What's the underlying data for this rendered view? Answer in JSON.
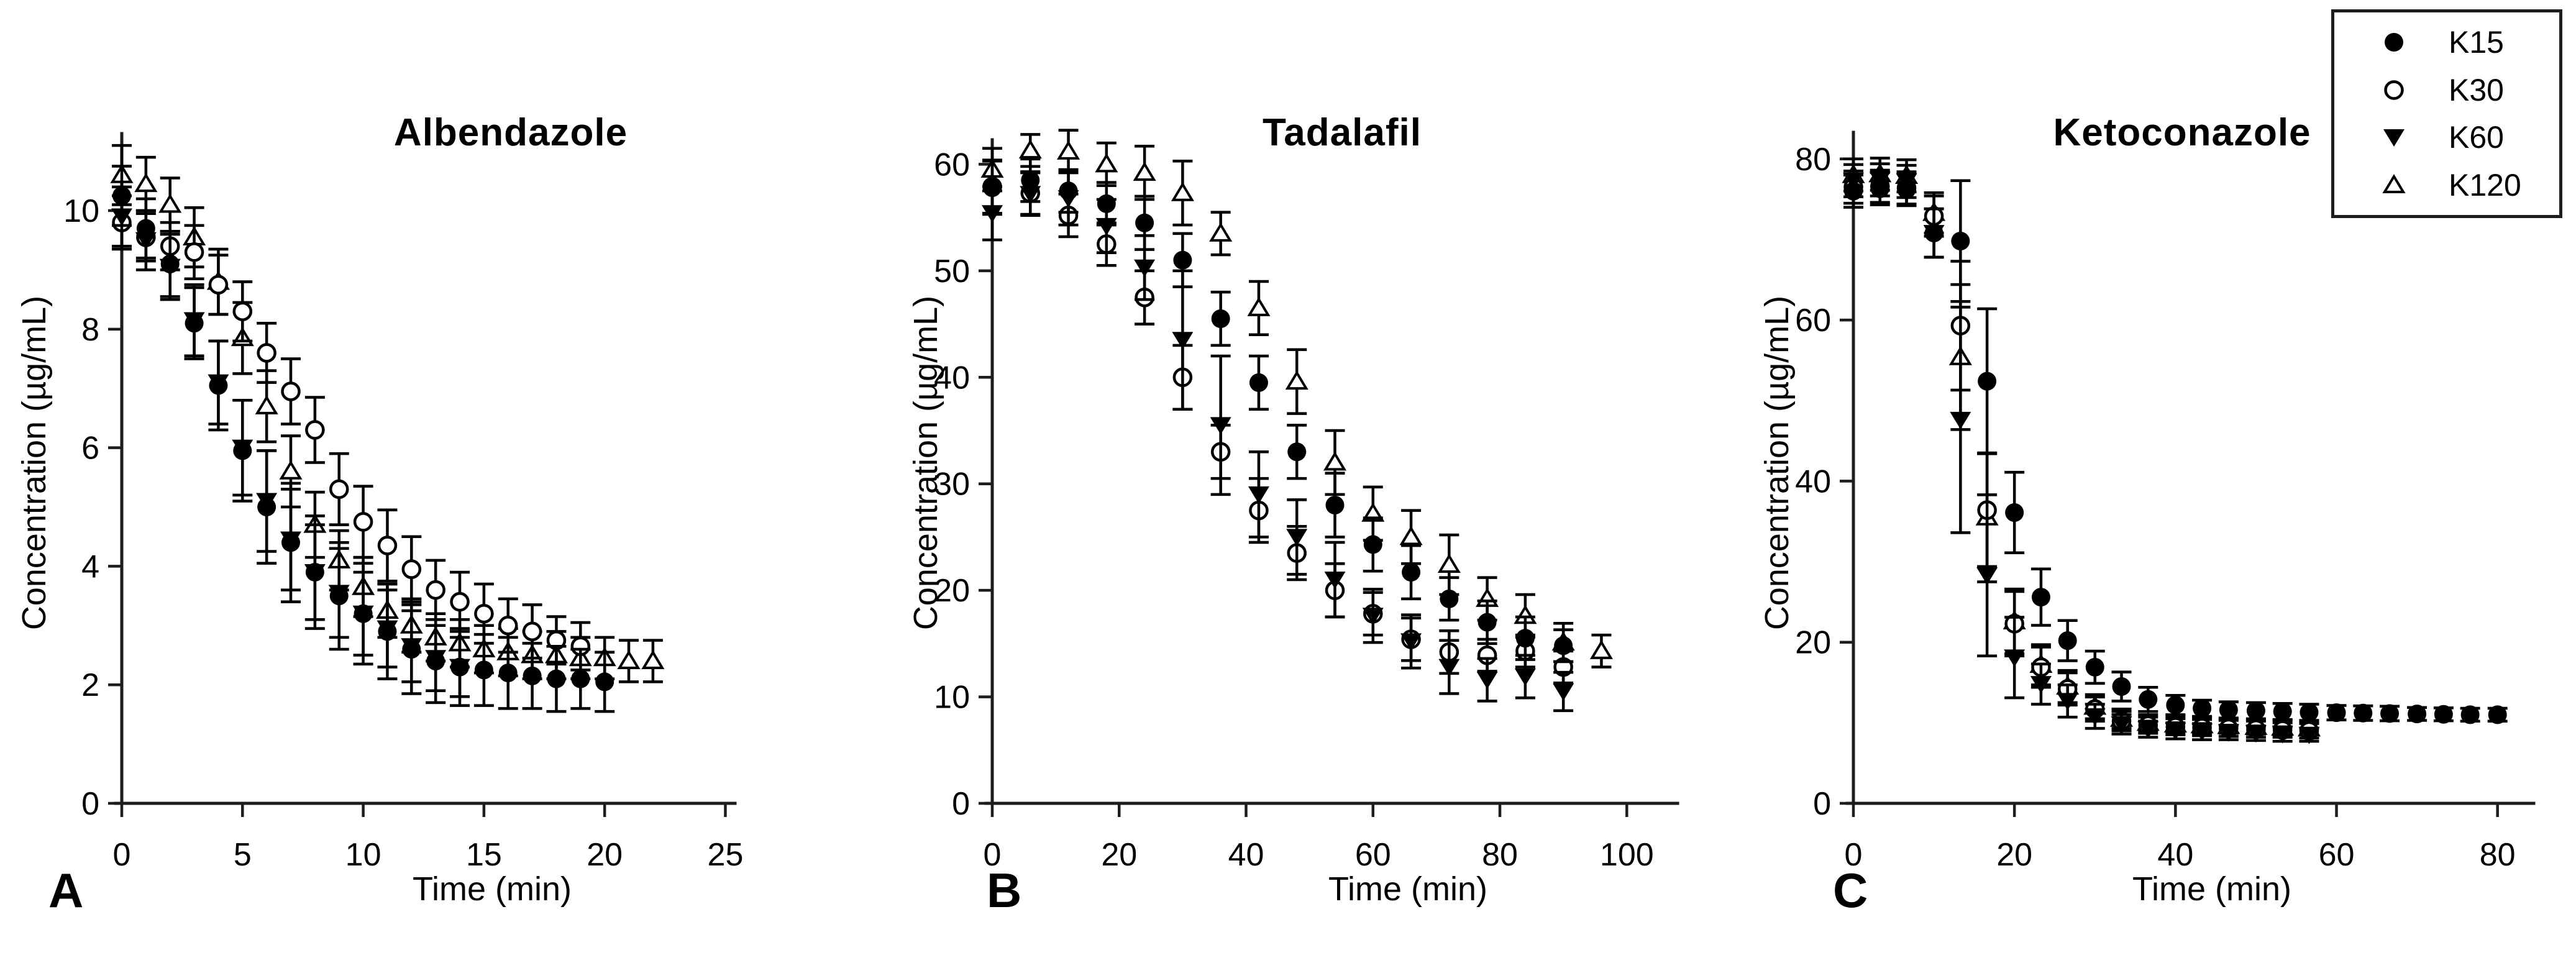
{
  "figure": {
    "x_label": "Time (min)",
    "y_label": "Concentration (µg/mL)",
    "background": "#ffffff",
    "ink": "#000000",
    "axis_color": "#1d1d1d"
  },
  "legend": {
    "items": [
      {
        "label": "K15",
        "marker": "circle-filled"
      },
      {
        "label": "K30",
        "marker": "circle-open"
      },
      {
        "label": "K60",
        "marker": "triangle-down-filled"
      },
      {
        "label": "K120",
        "marker": "triangle-up-open"
      }
    ]
  },
  "chart_data": [
    {
      "type": "scatter",
      "panel_letter": "A",
      "title": "Albendazole",
      "xlabel": "Time (min)",
      "ylabel": "Concentration (µg/mL)",
      "xlim": [
        0,
        25.4
      ],
      "ylim": [
        0,
        11.3
      ],
      "x_ticks": [
        0,
        5,
        10,
        15,
        20,
        25
      ],
      "y_ticks": [
        0,
        2,
        4,
        6,
        8,
        10
      ],
      "grid": false,
      "series": [
        {
          "name": "K120",
          "marker": "triangle-up-open",
          "x": [
            0,
            1,
            2,
            3,
            4,
            5,
            6,
            7,
            8,
            9,
            10,
            11,
            12,
            13,
            14,
            15,
            16,
            17,
            18,
            19,
            20,
            21,
            22
          ],
          "y": [
            10.6,
            10.45,
            10.1,
            9.55,
            8.8,
            7.85,
            6.7,
            5.6,
            4.7,
            4.1,
            3.65,
            3.25,
            3.0,
            2.8,
            2.7,
            2.6,
            2.55,
            2.5,
            2.5,
            2.45,
            2.45,
            2.4,
            2.4
          ],
          "err": [
            0.5,
            0.45,
            0.45,
            0.5,
            0.55,
            0.6,
            0.6,
            0.6,
            0.55,
            0.5,
            0.5,
            0.45,
            0.45,
            0.4,
            0.4,
            0.4,
            0.4,
            0.4,
            0.4,
            0.35,
            0.35,
            0.35,
            0.35
          ]
        },
        {
          "name": "K30",
          "marker": "circle-open",
          "x": [
            0,
            1,
            2,
            3,
            4,
            5,
            6,
            7,
            8,
            9,
            10,
            11,
            12,
            13,
            14,
            15,
            16,
            17,
            18,
            19
          ],
          "y": [
            9.8,
            9.55,
            9.4,
            9.3,
            8.75,
            8.3,
            7.6,
            6.95,
            6.3,
            5.3,
            4.75,
            4.35,
            3.95,
            3.6,
            3.4,
            3.2,
            3.0,
            2.9,
            2.75,
            2.65
          ],
          "err": [
            0.45,
            0.4,
            0.4,
            0.45,
            0.5,
            0.5,
            0.5,
            0.55,
            0.55,
            0.6,
            0.6,
            0.6,
            0.55,
            0.5,
            0.5,
            0.5,
            0.45,
            0.45,
            0.4,
            0.4
          ]
        },
        {
          "name": "K60",
          "marker": "triangle-down-filled",
          "x": [
            0,
            1,
            2,
            3,
            4,
            5,
            6,
            7,
            8,
            9,
            10,
            11,
            12,
            13,
            14
          ],
          "y": [
            9.9,
            9.5,
            9.05,
            8.15,
            7.1,
            6.0,
            5.1,
            4.45,
            3.9,
            3.55,
            3.2,
            2.95,
            2.65,
            2.45,
            2.3
          ],
          "err": [
            0.5,
            0.5,
            0.55,
            0.6,
            0.7,
            0.8,
            0.85,
            0.85,
            0.8,
            0.75,
            0.7,
            0.65,
            0.6,
            0.55,
            0.5
          ]
        },
        {
          "name": "K15",
          "marker": "circle-filled",
          "x": [
            0,
            1,
            2,
            3,
            4,
            5,
            6,
            7,
            8,
            9,
            10,
            11,
            12,
            13,
            14,
            15,
            16,
            17,
            18,
            19,
            20
          ],
          "y": [
            10.25,
            9.7,
            9.1,
            8.1,
            7.05,
            5.95,
            5.0,
            4.4,
            3.9,
            3.5,
            3.2,
            2.9,
            2.6,
            2.4,
            2.3,
            2.25,
            2.2,
            2.15,
            2.1,
            2.1,
            2.05
          ],
          "err": [
            0.5,
            0.5,
            0.55,
            0.6,
            0.75,
            0.85,
            0.95,
            1.0,
            0.95,
            0.9,
            0.85,
            0.8,
            0.75,
            0.7,
            0.65,
            0.6,
            0.6,
            0.55,
            0.55,
            0.5,
            0.5
          ]
        }
      ]
    },
    {
      "type": "scatter",
      "panel_letter": "B",
      "title": "Tadalafil",
      "xlabel": "Time (min)",
      "ylabel": "Concentration (µg/mL)",
      "xlim": [
        0,
        108
      ],
      "ylim": [
        0,
        62.3
      ],
      "x_ticks": [
        0,
        20,
        40,
        60,
        80,
        100
      ],
      "y_ticks": [
        0,
        10,
        20,
        30,
        40,
        50,
        60
      ],
      "grid": false,
      "series": [
        {
          "name": "K120",
          "marker": "triangle-up-open",
          "x": [
            0,
            6,
            12,
            18,
            24,
            30,
            36,
            42,
            48,
            54,
            60,
            66,
            72,
            78,
            84,
            90,
            96
          ],
          "y": [
            59.5,
            61.3,
            61.2,
            60.0,
            59.2,
            57.3,
            53.5,
            46.5,
            39.6,
            32.0,
            27.2,
            25.0,
            22.4,
            19.2,
            17.6,
            15.1,
            14.3
          ],
          "err": [
            2.0,
            1.5,
            2.0,
            2.0,
            2.5,
            3.0,
            2.0,
            2.5,
            3.0,
            3.0,
            2.5,
            2.5,
            2.8,
            2.0,
            2.0,
            1.8,
            1.5
          ]
        },
        {
          "name": "K30",
          "marker": "circle-open",
          "x": [
            0,
            6,
            12,
            18,
            24,
            30,
            36,
            42,
            48,
            54,
            60,
            66,
            72,
            78,
            84,
            90
          ],
          "y": [
            57.9,
            57.3,
            55.2,
            52.5,
            47.5,
            40.0,
            33.0,
            27.5,
            23.5,
            20.0,
            17.8,
            15.4,
            14.2,
            13.9,
            14.3,
            12.8
          ],
          "err": [
            2.5,
            2.0,
            2.0,
            2.0,
            2.5,
            3.0,
            2.5,
            3.0,
            2.5,
            2.5,
            2.0,
            2.0,
            2.0,
            1.5,
            1.5,
            1.5
          ]
        },
        {
          "name": "K60",
          "marker": "triangle-down-filled",
          "x": [
            0,
            6,
            12,
            18,
            24,
            30,
            36,
            42,
            48,
            54,
            60,
            66,
            72,
            78,
            84,
            90
          ],
          "y": [
            55.4,
            57.2,
            56.8,
            54.2,
            50.3,
            43.5,
            35.5,
            29.0,
            25.0,
            21.0,
            17.6,
            15.2,
            12.8,
            11.6,
            11.9,
            10.5
          ],
          "err": [
            2.5,
            2.0,
            2.5,
            2.5,
            3.0,
            6.5,
            6.5,
            4.0,
            3.5,
            3.5,
            2.5,
            2.5,
            2.5,
            2.0,
            2.0,
            1.8
          ]
        },
        {
          "name": "K15",
          "marker": "circle-filled",
          "x": [
            0,
            6,
            12,
            18,
            24,
            30,
            36,
            42,
            48,
            54,
            60,
            66,
            72,
            78,
            84,
            90
          ],
          "y": [
            57.8,
            58.5,
            57.5,
            56.3,
            54.5,
            51.0,
            45.5,
            39.5,
            33.0,
            28.0,
            24.3,
            21.7,
            19.2,
            17.0,
            15.5,
            14.8
          ],
          "err": [
            2.5,
            2.0,
            2.0,
            2.0,
            2.5,
            2.5,
            2.5,
            2.5,
            2.5,
            3.0,
            2.5,
            2.5,
            2.0,
            2.0,
            2.0,
            1.5
          ]
        }
      ]
    },
    {
      "type": "scatter",
      "panel_letter": "C",
      "title": "Ketoconazole",
      "xlabel": "Time (min)",
      "ylabel": "Concentration (µg/mL)",
      "xlim": [
        0,
        84.5
      ],
      "ylim": [
        0,
        83.3
      ],
      "x_ticks": [
        0,
        20,
        40,
        60,
        80
      ],
      "y_ticks": [
        0,
        20,
        40,
        60,
        80
      ],
      "grid": false,
      "series": [
        {
          "name": "K120",
          "marker": "triangle-up-open",
          "x": [
            0,
            3.3,
            6.6,
            10,
            13.3,
            16.6,
            20,
            23.3,
            26.6,
            30,
            33.3,
            36.6,
            40,
            43.3,
            46.6,
            50,
            53.3,
            56.6
          ],
          "y": [
            78.0,
            78.1,
            77.9,
            73.3,
            55.4,
            35.5,
            22.6,
            17.2,
            14.5,
            12.0,
            10.5,
            10.0,
            9.8,
            9.7,
            9.6,
            9.5,
            9.4,
            9.3
          ],
          "err": [
            2.0,
            2.0,
            2.0,
            2.5,
            9.0,
            8.0,
            4.0,
            2.5,
            2.0,
            1.5,
            1.2,
            1.0,
            1.0,
            1.0,
            0.9,
            0.9,
            0.9,
            0.8
          ]
        },
        {
          "name": "K30",
          "marker": "circle-open",
          "x": [
            0,
            3.3,
            6.6,
            10,
            13.3,
            16.6,
            20,
            23.3,
            26.6,
            30,
            33.3,
            36.6,
            40,
            43.3,
            46.6,
            50,
            53.3,
            56.6
          ],
          "y": [
            76.5,
            76.6,
            76.4,
            72.9,
            59.3,
            36.4,
            22.3,
            16.9,
            14.2,
            11.7,
            10.2,
            9.7,
            9.5,
            9.4,
            9.3,
            9.2,
            9.1,
            9.0
          ],
          "err": [
            2.0,
            2.0,
            2.0,
            2.5,
            8.0,
            7.0,
            4.0,
            2.5,
            2.0,
            1.5,
            1.2,
            1.0,
            1.0,
            1.0,
            1.0,
            1.0,
            0.9,
            0.9
          ]
        },
        {
          "name": "K60",
          "marker": "triangle-down-filled",
          "x": [
            0,
            3.3,
            6.6,
            10,
            13.3,
            16.6,
            20,
            23.3,
            26.6,
            30,
            33.3,
            36.6,
            40,
            43.3,
            46.6,
            50,
            53.3,
            56.6
          ],
          "y": [
            77.3,
            77.4,
            77.2,
            70.8,
            47.6,
            28.3,
            18.1,
            14.8,
            12.7,
            10.8,
            9.8,
            9.2,
            9.0,
            8.9,
            8.8,
            8.7,
            8.6,
            8.5
          ],
          "err": [
            2.0,
            2.0,
            2.0,
            3.0,
            14.0,
            10.0,
            5.0,
            2.5,
            2.0,
            1.5,
            1.2,
            1.0,
            1.0,
            1.0,
            0.9,
            0.9,
            0.9,
            0.8
          ]
        },
        {
          "name": "K15",
          "marker": "circle-filled",
          "x": [
            0,
            3.3,
            6.6,
            10,
            13.3,
            16.6,
            20,
            23.3,
            26.6,
            30,
            33.3,
            36.6,
            40,
            43.3,
            46.6,
            50,
            53.3,
            56.6,
            60,
            63.3,
            66.6,
            70,
            73.3,
            76.6,
            80
          ],
          "y": [
            76.0,
            76.3,
            76.2,
            70.8,
            69.8,
            52.4,
            36.1,
            25.6,
            20.2,
            16.9,
            14.5,
            12.9,
            12.2,
            11.8,
            11.6,
            11.5,
            11.4,
            11.3,
            11.25,
            11.2,
            11.15,
            11.1,
            11.05,
            11.0,
            11.0
          ],
          "err": [
            2.0,
            2.0,
            2.0,
            3.0,
            7.5,
            9.0,
            5.0,
            3.5,
            2.5,
            2.0,
            1.8,
            1.5,
            1.2,
            1.0,
            1.0,
            1.0,
            1.0,
            1.0,
            0.9,
            0.9,
            0.9,
            0.8,
            0.8,
            0.8,
            0.8
          ]
        }
      ]
    }
  ]
}
